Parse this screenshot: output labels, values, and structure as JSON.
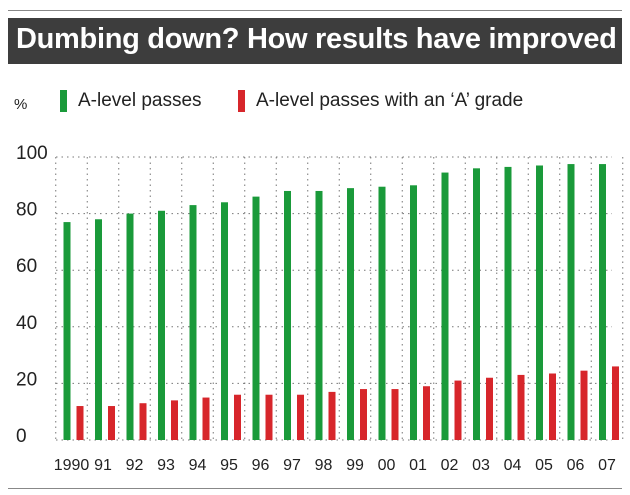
{
  "title": "Dumbing down? How results have improved",
  "chart_data": {
    "type": "bar",
    "unit_label": "%",
    "categories": [
      "1990",
      "91",
      "92",
      "93",
      "94",
      "95",
      "96",
      "97",
      "98",
      "99",
      "00",
      "01",
      "02",
      "03",
      "04",
      "05",
      "06",
      "07"
    ],
    "series": [
      {
        "name": "A-level passes",
        "color": "#1a9a3a",
        "values": [
          77,
          78,
          80,
          81,
          83,
          84,
          86,
          88,
          88,
          89,
          89.5,
          90,
          94.5,
          96,
          96.5,
          97,
          97.5,
          97.5
        ]
      },
      {
        "name": "A-level passes with an ‘A’ grade",
        "color": "#d7262b",
        "values": [
          12,
          12,
          13,
          14,
          15,
          16,
          16,
          16,
          17,
          18,
          18,
          19,
          21,
          22,
          23,
          23.5,
          24.5,
          26
        ]
      }
    ],
    "ylim": [
      0,
      100
    ],
    "yticks": [
      0,
      20,
      40,
      60,
      80,
      100
    ],
    "grid": "dotted",
    "legend": "top"
  }
}
